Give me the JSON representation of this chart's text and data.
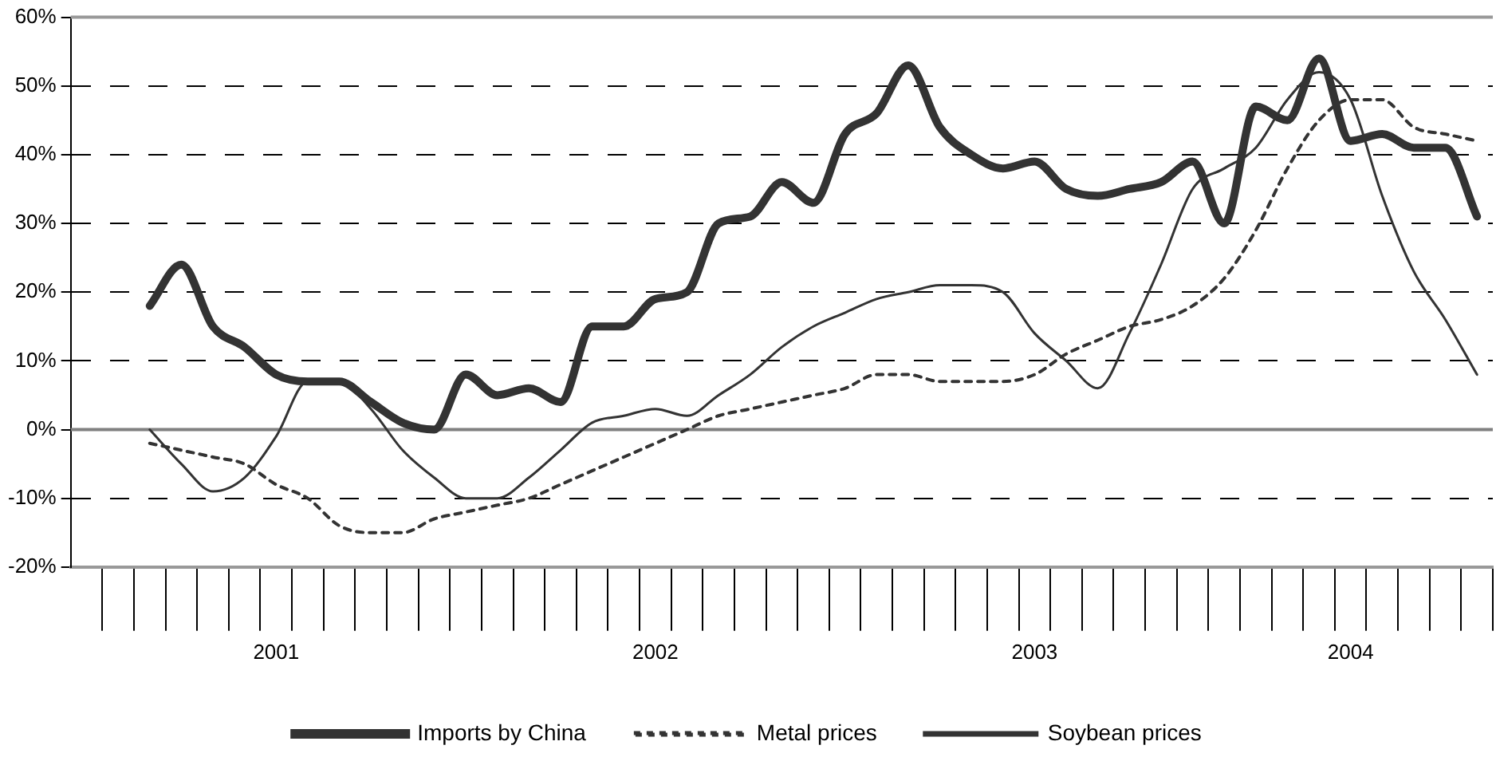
{
  "chart_data": {
    "type": "line",
    "categories": [
      null,
      null,
      null,
      null,
      null,
      null,
      "2001",
      null,
      null,
      null,
      null,
      null,
      null,
      null,
      null,
      null,
      null,
      null,
      "2002",
      null,
      null,
      null,
      null,
      null,
      null,
      null,
      null,
      null,
      null,
      null,
      "2003",
      null,
      null,
      null,
      null,
      null,
      null,
      null,
      null,
      null,
      "2004",
      null,
      null,
      null,
      null
    ],
    "series": [
      {
        "name": "Imports by China",
        "color": "#333333",
        "line_style": "solid",
        "values": [
          null,
          null,
          18,
          24,
          15,
          12,
          8,
          7,
          7,
          4,
          1,
          0,
          8,
          5,
          6,
          4,
          15,
          15,
          19,
          20,
          30,
          31,
          36,
          33,
          43,
          46,
          53,
          44,
          40,
          38,
          39,
          35,
          34,
          35,
          36,
          39,
          30,
          47,
          45,
          54,
          42,
          43,
          41,
          41,
          31
        ]
      },
      {
        "name": "Metal prices",
        "color": "#333333",
        "line_style": "dashed",
        "values": [
          null,
          null,
          -2,
          -3,
          -4,
          -5,
          -8,
          -10,
          -14,
          -15,
          -15,
          -13,
          -12,
          -11,
          -10,
          -8,
          -6,
          -4,
          -2,
          0,
          2,
          3,
          4,
          5,
          6,
          8,
          8,
          7,
          7,
          7,
          8,
          11,
          13,
          15,
          16,
          18,
          22,
          29,
          38,
          45,
          48,
          48,
          44,
          43,
          42
        ]
      },
      {
        "name": "Soybean prices",
        "color": "#333333",
        "line_style": "solid",
        "values": [
          null,
          null,
          0,
          -5,
          -9,
          -7,
          -1,
          7,
          7,
          3,
          -3,
          -7,
          -10,
          -10,
          -7,
          -3,
          1,
          2,
          3,
          2,
          5,
          8,
          12,
          15,
          17,
          19,
          20,
          21,
          21,
          20,
          14,
          10,
          6,
          14,
          24,
          35,
          38,
          41,
          48,
          52,
          48,
          34,
          23,
          16,
          8
        ]
      }
    ],
    "ylim": [
      -20,
      60
    ],
    "yticks": [
      {
        "value": -20,
        "label": "-20%"
      },
      {
        "value": -10,
        "label": "-10%"
      },
      {
        "value": 0,
        "label": "0%"
      },
      {
        "value": 10,
        "label": "10%"
      },
      {
        "value": 20,
        "label": "20%"
      },
      {
        "value": 30,
        "label": "30%"
      },
      {
        "value": 40,
        "label": "40%"
      },
      {
        "value": 50,
        "label": "50%"
      },
      {
        "value": 60,
        "label": "60%"
      }
    ],
    "ref_lines": [
      {
        "axis": "y",
        "value": 0,
        "color": "#808080"
      }
    ],
    "grid": "y",
    "legend": "bottom",
    "marker": "none"
  }
}
